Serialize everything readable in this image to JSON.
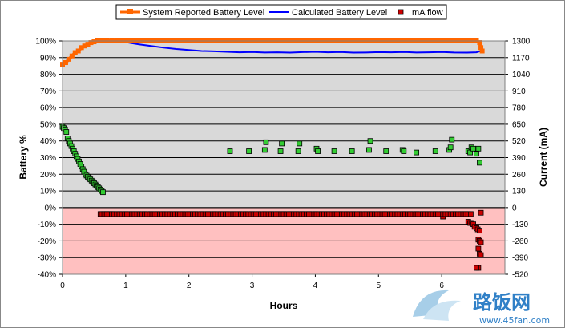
{
  "chart_data": {
    "type": "line",
    "title": "",
    "xlabel": "Hours",
    "ylabel": "Battery %",
    "y2label": "Current (mA)",
    "xlim": [
      0,
      7
    ],
    "ylim": [
      -40,
      100
    ],
    "y2lim": [
      -520,
      1300
    ],
    "x_ticks": [
      0,
      1,
      2,
      3,
      4,
      5,
      6
    ],
    "y_ticks": [
      -40,
      -30,
      -20,
      -10,
      0,
      10,
      20,
      30,
      40,
      50,
      60,
      70,
      80,
      90,
      100
    ],
    "y_tick_labels": [
      "-40%",
      "-30%",
      "-20%",
      "-10%",
      "0%",
      "10%",
      "20%",
      "30%",
      "40%",
      "50%",
      "60%",
      "70%",
      "80%",
      "90%",
      "100%"
    ],
    "y2_ticks": [
      -520,
      -390,
      -260,
      -130,
      0,
      130,
      260,
      390,
      520,
      650,
      780,
      910,
      1040,
      1170,
      1300
    ],
    "grid": true,
    "legend": "top",
    "colors": {
      "system": "#ff6600",
      "calculated": "#0000ff",
      "mA_positive": "#33cc33",
      "mA_negative": "#cc0000",
      "plot_bg_positive": "#d9d9d9",
      "plot_bg_negative": "#ffc0c0"
    },
    "series": [
      {
        "name": "System Reported Battery Level",
        "axis": "left",
        "style": "line-square-markers",
        "x": [
          0,
          0.05,
          0.1,
          0.15,
          0.2,
          0.25,
          0.3,
          0.35,
          0.4,
          0.45,
          0.5,
          0.55,
          0.6,
          0.65,
          0.7,
          0.85,
          1,
          1.5,
          2,
          2.5,
          3,
          3.5,
          4,
          4.5,
          5,
          5.5,
          6,
          6.3,
          6.5,
          6.55,
          6.6,
          6.62,
          6.64
        ],
        "y": [
          86,
          87,
          89,
          91,
          93,
          94,
          96,
          97,
          98,
          99,
          99.5,
          100,
          100,
          100,
          100,
          100,
          100,
          100,
          100,
          100,
          100,
          100,
          100,
          100,
          100,
          100,
          100,
          100,
          100,
          100,
          99,
          96,
          94
        ]
      },
      {
        "name": "Calculated Battery Level",
        "axis": "left",
        "style": "line",
        "x": [
          0.85,
          1.0,
          1.2,
          1.4,
          1.6,
          1.8,
          2.0,
          2.2,
          2.4,
          2.6,
          2.8,
          3.0,
          3.2,
          3.4,
          3.6,
          3.8,
          4.0,
          4.2,
          4.4,
          4.6,
          4.8,
          5.0,
          5.2,
          5.4,
          5.6,
          5.8,
          6.0,
          6.2,
          6.4,
          6.55,
          6.62
        ],
        "y": [
          100,
          99.3,
          98,
          97,
          96,
          95.2,
          94.6,
          94,
          93.8,
          93.5,
          93.2,
          93.4,
          93.1,
          93.2,
          93,
          93.3,
          93.5,
          93.2,
          93.4,
          93,
          93.1,
          93.3,
          93.2,
          93.4,
          93.1,
          93.2,
          93.4,
          93.1,
          93,
          93.2,
          94
        ]
      },
      {
        "name": "mA flow",
        "axis": "right",
        "style": "markers",
        "x": [
          0,
          0.02,
          0.04,
          0.06,
          0.08,
          0.1,
          0.12,
          0.14,
          0.16,
          0.18,
          0.2,
          0.22,
          0.24,
          0.26,
          0.28,
          0.3,
          0.32,
          0.34,
          0.36,
          0.38,
          0.4,
          0.42,
          0.44,
          0.46,
          0.48,
          0.5,
          0.52,
          0.54,
          0.56,
          0.58,
          0.6,
          0.62,
          0.64,
          2.65,
          2.95,
          3.2,
          3.22,
          3.45,
          3.47,
          3.73,
          3.75,
          4.02,
          4.04,
          4.3,
          4.58,
          4.85,
          4.87,
          5.12,
          5.38,
          5.4,
          5.6,
          5.9,
          6.12,
          6.14,
          6.16,
          6.42,
          6.45,
          6.47,
          6.5,
          6.55,
          6.58,
          6.6,
          0.6,
          0.65,
          0.7,
          0.75,
          0.8,
          0.9,
          1.0,
          1.1,
          1.2,
          1.3,
          1.4,
          1.5,
          1.6,
          1.7,
          1.8,
          1.9,
          2.0,
          2.1,
          2.2,
          2.3,
          2.4,
          2.5,
          2.6,
          2.7,
          2.8,
          2.9,
          3.0,
          3.1,
          3.2,
          3.3,
          3.4,
          3.5,
          3.6,
          3.7,
          3.8,
          3.9,
          4.0,
          4.1,
          4.2,
          4.3,
          4.4,
          4.5,
          4.6,
          4.7,
          4.8,
          4.9,
          5.0,
          5.1,
          5.2,
          5.3,
          5.4,
          5.5,
          5.6,
          5.7,
          5.8,
          5.9,
          6.0,
          6.02,
          6.1,
          6.2,
          6.3,
          6.38,
          6.42,
          6.45,
          6.47,
          6.5,
          6.52,
          6.55,
          6.57,
          6.6,
          6.58,
          6.6,
          6.62,
          6.58,
          6.6,
          6.62,
          6.58,
          6.55,
          6.62
        ],
        "y": [
          630,
          620,
          610,
          590,
          540,
          520,
          500,
          480,
          460,
          440,
          420,
          400,
          380,
          360,
          340,
          320,
          300,
          280,
          260,
          250,
          240,
          230,
          220,
          210,
          200,
          190,
          180,
          170,
          160,
          150,
          140,
          130,
          120,
          440,
          440,
          450,
          510,
          440,
          500,
          440,
          500,
          460,
          440,
          440,
          440,
          450,
          520,
          440,
          450,
          440,
          430,
          440,
          450,
          470,
          530,
          440,
          430,
          470,
          460,
          420,
          460,
          350,
          -50,
          -50,
          -50,
          -50,
          -50,
          -50,
          -50,
          -50,
          -50,
          -50,
          -50,
          -50,
          -50,
          -50,
          -50,
          -50,
          -50,
          -50,
          -50,
          -50,
          -50,
          -50,
          -50,
          -50,
          -50,
          -50,
          -50,
          -50,
          -50,
          -50,
          -50,
          -50,
          -50,
          -50,
          -50,
          -50,
          -50,
          -50,
          -50,
          -50,
          -50,
          -50,
          -50,
          -50,
          -50,
          -50,
          -50,
          -50,
          -50,
          -50,
          -50,
          -50,
          -50,
          -50,
          -50,
          -50,
          -50,
          -70,
          -50,
          -50,
          -50,
          -50,
          -110,
          -120,
          -120,
          -130,
          -150,
          -160,
          -170,
          -180,
          -250,
          -260,
          -270,
          -320,
          -360,
          -370,
          -470,
          -470,
          -40
        ]
      }
    ]
  },
  "legend": {
    "items": [
      {
        "label": "System Reported Battery Level"
      },
      {
        "label": "Calculated Battery Level"
      },
      {
        "label": "mA flow"
      }
    ]
  },
  "watermark": {
    "brand": "路饭网",
    "url": "www.45fan.com"
  }
}
